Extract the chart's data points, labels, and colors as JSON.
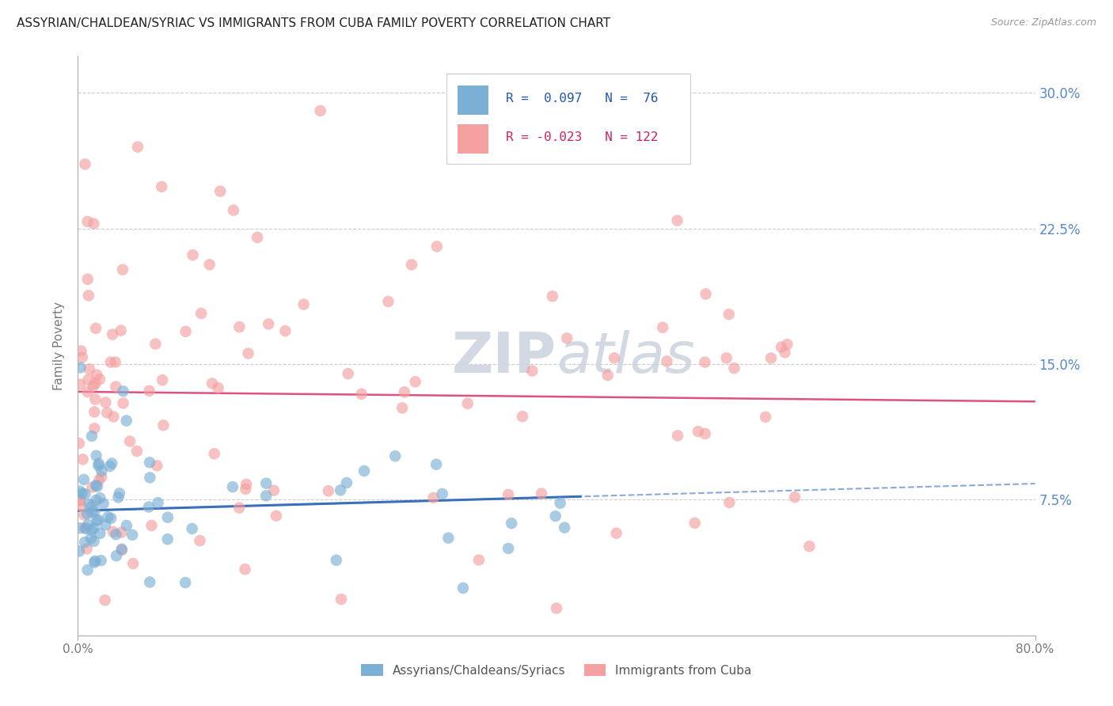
{
  "title": "ASSYRIAN/CHALDEAN/SYRIAC VS IMMIGRANTS FROM CUBA FAMILY POVERTY CORRELATION CHART",
  "source": "Source: ZipAtlas.com",
  "ylabel": "Family Poverty",
  "ytick_labels": [
    "7.5%",
    "15.0%",
    "22.5%",
    "30.0%"
  ],
  "ytick_values": [
    0.075,
    0.15,
    0.225,
    0.3
  ],
  "xlim": [
    0.0,
    0.8
  ],
  "ylim": [
    0.0,
    0.32
  ],
  "legend_label1": "Assyrians/Chaldeans/Syriacs",
  "legend_label2": "Immigrants from Cuba",
  "R1": 0.097,
  "N1": 76,
  "R2": -0.023,
  "N2": 122,
  "color1": "#7bafd4",
  "color2": "#f4a0a0",
  "trendline1_color": "#3a6fba",
  "trendline2_color": "#e05080",
  "trendline_dash_color": "#8aaad8",
  "background_color": "#ffffff",
  "grid_color": "#cccccc",
  "watermark_color": "#cdd5e0",
  "title_fontsize": 11,
  "axis_label_color": "#777777",
  "right_tick_color": "#5588cc"
}
